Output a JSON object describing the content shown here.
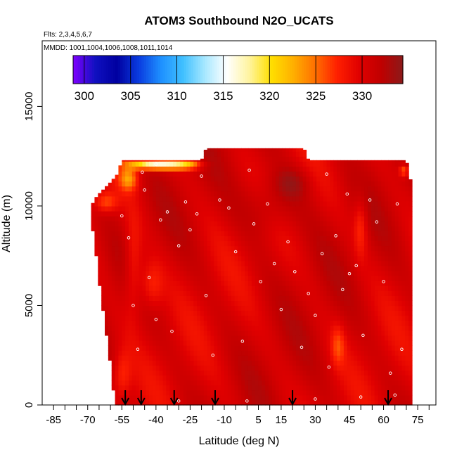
{
  "chart_data": {
    "type": "heatmap",
    "title": "ATOM3 Southbound N2O_UCATS",
    "flights_note": "Flts: 2,3,4,5,6,7",
    "dates_note": "MMDD: 1001,1004,1006,1008,1011,1014",
    "xlabel": "Latitude (deg N)",
    "ylabel": "Altitude (m)",
    "xlim": [
      -90,
      83
    ],
    "ylim": [
      0,
      18300
    ],
    "x_ticks": [
      -85,
      -70,
      -55,
      -40,
      -25,
      -10,
      5,
      15,
      30,
      45,
      60,
      75
    ],
    "x_minor_ticks": [
      -85,
      -80,
      -75,
      -70,
      -65,
      -60,
      -55,
      -50,
      -45,
      -40,
      -35,
      -30,
      -25,
      -20,
      -15,
      -10,
      -5,
      0,
      5,
      10,
      15,
      20,
      25,
      30,
      35,
      40,
      45,
      50,
      55,
      60,
      65,
      70,
      75,
      80
    ],
    "y_ticks": [
      0,
      5000,
      10000,
      15000
    ],
    "colorbar": {
      "ticks": [
        300,
        305,
        310,
        315,
        320,
        325,
        330
      ],
      "range": [
        298.8,
        334.4
      ],
      "colors": [
        "#8000ff",
        "#1010c0",
        "#0000a0",
        "#0a3de0",
        "#1e90ff",
        "#40c0ff",
        "#a8e8ff",
        "#ffffff",
        "#fff4a0",
        "#ffe000",
        "#ffb000",
        "#ff7000",
        "#ff2000",
        "#e00000",
        "#c00000",
        "#8b1a1a"
      ]
    },
    "field": {
      "lat_range": [
        -68.5,
        72
      ],
      "base_value": 330.5,
      "south_edge_bottom_lat": -57,
      "north_edge_lat": 72,
      "top_profile": [
        {
          "lat": -68.5,
          "alt": 10000
        },
        {
          "lat": -66,
          "alt": 10500
        },
        {
          "lat": -60,
          "alt": 11200
        },
        {
          "lat": -57,
          "alt": 11600
        },
        {
          "lat": -55,
          "alt": 12300
        },
        {
          "lat": -52,
          "alt": 12300
        },
        {
          "lat": -20,
          "alt": 12300
        },
        {
          "lat": -18,
          "alt": 12900
        },
        {
          "lat": 25,
          "alt": 12900
        },
        {
          "lat": 27,
          "alt": 12300
        },
        {
          "lat": 70,
          "alt": 12300
        },
        {
          "lat": 72,
          "alt": 11200
        }
      ],
      "features": [
        {
          "lat": -43,
          "alt": 12100,
          "value": 318,
          "lat_w": 9,
          "alt_w": 250
        },
        {
          "lat": -33,
          "alt": 12100,
          "value": 322,
          "lat_w": 8,
          "alt_w": 250
        },
        {
          "lat": -25,
          "alt": 12100,
          "value": 325,
          "lat_w": 6,
          "alt_w": 250
        },
        {
          "lat": -52,
          "alt": 11400,
          "value": 324,
          "lat_w": 4,
          "alt_w": 600
        },
        {
          "lat": -62,
          "alt": 10200,
          "value": 326,
          "lat_w": 5,
          "alt_w": 500
        },
        {
          "lat": -50,
          "alt": 7000,
          "value": 327,
          "lat_w": 4,
          "alt_w": 2500
        },
        {
          "lat": -42,
          "alt": 6000,
          "value": 327,
          "lat_w": 5,
          "alt_w": 1200
        },
        {
          "lat": -55,
          "alt": 1500,
          "value": 327,
          "lat_w": 4,
          "alt_w": 1200
        },
        {
          "lat": 50,
          "alt": 9000,
          "value": 327,
          "lat_w": 3,
          "alt_w": 1500
        },
        {
          "lat": 40,
          "alt": 3000,
          "value": 327,
          "lat_w": 3,
          "alt_w": 1000
        },
        {
          "lat": 69,
          "alt": 11800,
          "value": 325,
          "lat_w": 2,
          "alt_w": 300
        },
        {
          "lat": 10,
          "alt": 10000,
          "value": 333,
          "lat_w": 12,
          "alt_w": 1500
        },
        {
          "lat": 20,
          "alt": 11200,
          "value": 333,
          "lat_w": 8,
          "alt_w": 800
        }
      ]
    },
    "sample_points": [
      {
        "lat": -55,
        "alt": 9500
      },
      {
        "lat": -52,
        "alt": 8400
      },
      {
        "lat": -50,
        "alt": 5000
      },
      {
        "lat": -48,
        "alt": 2800
      },
      {
        "lat": -45,
        "alt": 10800
      },
      {
        "lat": -43,
        "alt": 6400
      },
      {
        "lat": -40,
        "alt": 4300
      },
      {
        "lat": -38,
        "alt": 9300
      },
      {
        "lat": -35,
        "alt": 9700
      },
      {
        "lat": -33,
        "alt": 3700
      },
      {
        "lat": -30,
        "alt": 8000
      },
      {
        "lat": -27,
        "alt": 10200
      },
      {
        "lat": -25,
        "alt": 8800
      },
      {
        "lat": -22,
        "alt": 9600
      },
      {
        "lat": -18,
        "alt": 5500
      },
      {
        "lat": -15,
        "alt": 2500
      },
      {
        "lat": -12,
        "alt": 10300
      },
      {
        "lat": -8,
        "alt": 9900
      },
      {
        "lat": -5,
        "alt": 7700
      },
      {
        "lat": -2,
        "alt": 3200
      },
      {
        "lat": 1,
        "alt": 11800
      },
      {
        "lat": 3,
        "alt": 9100
      },
      {
        "lat": 6,
        "alt": 6200
      },
      {
        "lat": 9,
        "alt": 10100
      },
      {
        "lat": 12,
        "alt": 7100
      },
      {
        "lat": 15,
        "alt": 4800
      },
      {
        "lat": 18,
        "alt": 8200
      },
      {
        "lat": 21,
        "alt": 6700
      },
      {
        "lat": 24,
        "alt": 2900
      },
      {
        "lat": 27,
        "alt": 5600
      },
      {
        "lat": 30,
        "alt": 4500
      },
      {
        "lat": 33,
        "alt": 7600
      },
      {
        "lat": 36,
        "alt": 1900
      },
      {
        "lat": 39,
        "alt": 8500
      },
      {
        "lat": 42,
        "alt": 5800
      },
      {
        "lat": 45,
        "alt": 6600
      },
      {
        "lat": 48,
        "alt": 7000
      },
      {
        "lat": 51,
        "alt": 3500
      },
      {
        "lat": 54,
        "alt": 10300
      },
      {
        "lat": 57,
        "alt": 9200
      },
      {
        "lat": 60,
        "alt": 6200
      },
      {
        "lat": 63,
        "alt": 1600
      },
      {
        "lat": 66,
        "alt": 10100
      },
      {
        "lat": 68,
        "alt": 2800
      },
      {
        "lat": -46,
        "alt": 11700
      },
      {
        "lat": -40,
        "alt": 12100
      },
      {
        "lat": -20,
        "alt": 11500
      },
      {
        "lat": 35,
        "alt": 11600
      },
      {
        "lat": 44,
        "alt": 10600
      },
      {
        "lat": 50,
        "alt": 400
      },
      {
        "lat": 30,
        "alt": 300
      },
      {
        "lat": 0,
        "alt": 200
      },
      {
        "lat": -30,
        "alt": 200
      },
      {
        "lat": 65,
        "alt": 500
      }
    ],
    "flight_arrows_lat": [
      -53.5,
      -46.5,
      -32,
      -14,
      20,
      62
    ]
  }
}
